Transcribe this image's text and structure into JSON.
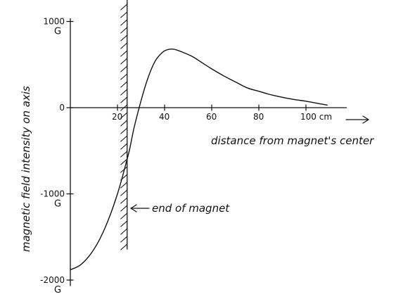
{
  "chart_data": {
    "type": "line",
    "xlabel": "distance from magnet's center",
    "ylabel": "magnetic field intensity on axis",
    "x_unit": "cm",
    "y_unit": "G",
    "xlim": [
      0,
      110
    ],
    "ylim": [
      -2000,
      1000
    ],
    "x_ticks": [
      {
        "value": 20,
        "label": "20"
      },
      {
        "value": 40,
        "label": "40"
      },
      {
        "value": 60,
        "label": "60"
      },
      {
        "value": 80,
        "label": "80"
      },
      {
        "value": 100,
        "label": "100 cm"
      }
    ],
    "y_ticks": [
      {
        "value": 1000,
        "label": "1000",
        "unit": "G"
      },
      {
        "value": 0,
        "label": "0",
        "unit": ""
      },
      {
        "value": -1000,
        "label": "-1000",
        "unit": "G"
      },
      {
        "value": -2000,
        "label": "-2000",
        "unit": "G"
      }
    ],
    "annotation": {
      "text": "end of magnet",
      "x": 25
    },
    "magnet_end_x": 25,
    "series": [
      {
        "x": [
          0,
          4,
          8,
          12,
          16,
          20,
          23,
          25,
          27,
          30,
          33,
          36,
          39,
          41,
          43,
          45,
          48,
          52,
          56,
          60,
          65,
          70,
          75,
          80,
          85,
          90,
          95,
          100,
          105,
          109
        ],
        "y": [
          -1880,
          -1830,
          -1720,
          -1550,
          -1310,
          -1000,
          -710,
          -500,
          -240,
          80,
          350,
          540,
          640,
          670,
          680,
          670,
          640,
          590,
          520,
          450,
          370,
          300,
          230,
          190,
          150,
          120,
          95,
          75,
          50,
          30
        ]
      }
    ]
  }
}
